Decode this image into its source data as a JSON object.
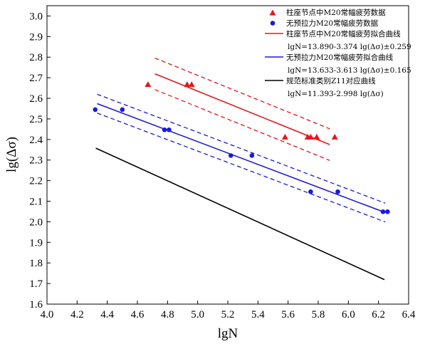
{
  "chart_data": {
    "type": "scatter",
    "xlabel": "lgN",
    "ylabel": "lg(Δσ)",
    "xlim": [
      4.0,
      6.4
    ],
    "ylim": [
      1.6,
      3.05
    ],
    "xticks": [
      4.0,
      4.2,
      4.4,
      4.6,
      4.8,
      5.0,
      5.2,
      5.4,
      5.6,
      5.8,
      6.0,
      6.2,
      6.4
    ],
    "yticks": [
      1.6,
      1.7,
      1.8,
      1.9,
      2.0,
      2.1,
      2.2,
      2.3,
      2.4,
      2.5,
      2.6,
      2.7,
      2.8,
      2.9,
      3.0
    ],
    "x_tick_labels": [
      "4.0",
      "4.2",
      "4.4",
      "4.6",
      "4.8",
      "5.0",
      "5.2",
      "5.4",
      "5.6",
      "5.8",
      "6.0",
      "6.2",
      "6.4"
    ],
    "y_tick_labels": [
      "1.6",
      "1.7",
      "1.8",
      "1.9",
      "2.0",
      "2.1",
      "2.2",
      "2.3",
      "2.4",
      "2.5",
      "2.6",
      "2.7",
      "2.8",
      "2.9",
      "3.0"
    ],
    "grid": false,
    "legend_position": "top-right",
    "series": [
      {
        "name": "柱座节点中M20常幅疲劳数据",
        "kind": "scatter",
        "marker": "triangle",
        "color": "#e8161b",
        "points": [
          [
            4.67,
            2.667
          ],
          [
            4.93,
            2.667
          ],
          [
            4.96,
            2.667
          ],
          [
            5.58,
            2.412
          ],
          [
            5.73,
            2.412
          ],
          [
            5.75,
            2.412
          ],
          [
            5.79,
            2.412
          ],
          [
            5.91,
            2.412
          ]
        ]
      },
      {
        "name": "无预拉力M20常幅疲劳数据",
        "kind": "scatter",
        "marker": "circle",
        "color": "#1a1adf",
        "points": [
          [
            4.32,
            2.545
          ],
          [
            4.5,
            2.545
          ],
          [
            4.78,
            2.447
          ],
          [
            4.81,
            2.447
          ],
          [
            5.22,
            2.322
          ],
          [
            5.36,
            2.322
          ],
          [
            5.75,
            2.146
          ],
          [
            5.93,
            2.146
          ],
          [
            6.23,
            2.049
          ],
          [
            6.26,
            2.049
          ]
        ]
      },
      {
        "name": "柱座节点中M20常幅疲劳拟合曲线",
        "kind": "fit",
        "color": "#e8161b",
        "equation": "lgN=13.890-3.374 lg(Δσ)±0.259",
        "intercept": 13.89,
        "slope": 3.374,
        "band": 0.259,
        "ylim": [
          2.375,
          2.719
        ]
      },
      {
        "name": "无预拉力M20常幅疲劳拟合曲线",
        "kind": "fit",
        "color": "#1a1adf",
        "equation": "lgN=13.633-3.613 lg(Δσ)±0.165",
        "intercept": 13.633,
        "slope": 3.613,
        "band": 0.165,
        "ylim": [
          2.045,
          2.574
        ]
      },
      {
        "name": "规范标准类别Z11对应曲线",
        "kind": "fit",
        "color": "#000000",
        "equation": "lgN=11.393-2.998 lg(Δσ)",
        "intercept": 11.393,
        "slope": 2.998,
        "band": 0,
        "ylim": [
          1.719,
          2.358
        ]
      }
    ]
  }
}
